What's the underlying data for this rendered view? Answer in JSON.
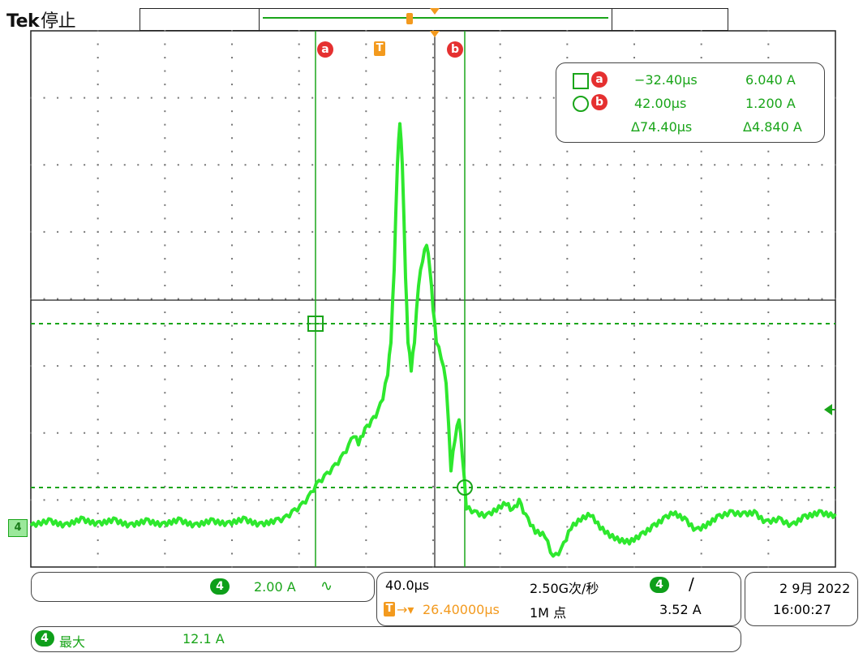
{
  "header": {
    "brand": "Tek",
    "status": "停止"
  },
  "markers": {
    "cursor_a": "a",
    "cursor_b": "b",
    "trigger": "T",
    "channel": "4"
  },
  "readout": {
    "row_a": {
      "time": "−32.40μs",
      "value": "6.040 A"
    },
    "row_b": {
      "time": "42.00μs",
      "value": "1.200 A"
    },
    "delta": {
      "time": "Δ74.40μs",
      "value": "Δ4.840 A"
    }
  },
  "bottom": {
    "channel_badge": "4",
    "vertical_scale": "2.00 A",
    "coupling_icon": "bandwidth-limit-icon",
    "timebase": "40.0μs",
    "sample_rate": "2.50G次/秒",
    "trigger_position": "26.40000μs",
    "record_length": "1M 点",
    "trigger_channel": "4",
    "trigger_slope_icon": "rising-edge-icon",
    "trigger_level": "3.52 A",
    "date": "2 9月 2022",
    "time": "16:00:27",
    "measure_channel": "4",
    "measure_label": "最大",
    "measure_value": "12.1 A"
  },
  "colors": {
    "trace": "#2ee82e",
    "cursor": "#1aa51a",
    "trigger": "#f39a1e",
    "cursor_label": "#e53030"
  }
}
